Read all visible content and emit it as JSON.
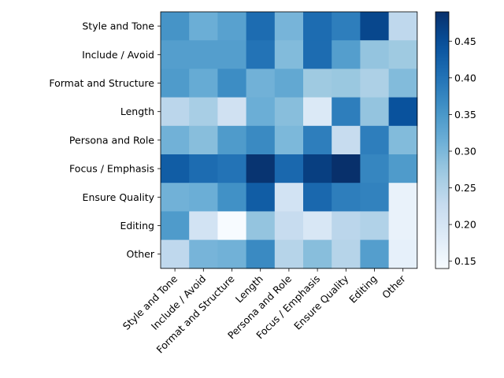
{
  "chart_data": {
    "type": "heatmap",
    "title": "",
    "xlabel": "",
    "ylabel": "",
    "rows": [
      "Style and Tone",
      "Include / Avoid",
      "Format and Structure",
      "Length",
      "Persona and Role",
      "Focus / Emphasis",
      "Ensure Quality",
      "Editing",
      "Other"
    ],
    "columns": [
      "Style and Tone",
      "Include / Avoid",
      "Format and Structure",
      "Length",
      "Persona and Role",
      "Focus / Emphasis",
      "Ensure Quality",
      "Editing",
      "Other"
    ],
    "values": [
      [
        0.355,
        0.315,
        0.335,
        0.41,
        0.305,
        0.41,
        0.385,
        0.46,
        0.235
      ],
      [
        0.34,
        0.34,
        0.34,
        0.4,
        0.295,
        0.41,
        0.34,
        0.28,
        0.27
      ],
      [
        0.345,
        0.32,
        0.365,
        0.31,
        0.325,
        0.27,
        0.275,
        0.255,
        0.295
      ],
      [
        0.24,
        0.26,
        0.21,
        0.315,
        0.29,
        0.19,
        0.385,
        0.28,
        0.445
      ],
      [
        0.31,
        0.29,
        0.345,
        0.37,
        0.3,
        0.385,
        0.225,
        0.385,
        0.295
      ],
      [
        0.43,
        0.41,
        0.4,
        0.485,
        0.415,
        0.47,
        0.49,
        0.375,
        0.345
      ],
      [
        0.31,
        0.315,
        0.36,
        0.43,
        0.205,
        0.415,
        0.385,
        0.38,
        0.165
      ],
      [
        0.345,
        0.205,
        0.14,
        0.28,
        0.225,
        0.195,
        0.24,
        0.25,
        0.165
      ],
      [
        0.235,
        0.305,
        0.31,
        0.37,
        0.245,
        0.29,
        0.245,
        0.34,
        0.17
      ]
    ],
    "colorbar": {
      "min": 0.14,
      "max": 0.49,
      "ticks": [
        "0.15",
        "0.20",
        "0.25",
        "0.30",
        "0.35",
        "0.40",
        "0.45"
      ],
      "tick_values": [
        0.15,
        0.2,
        0.25,
        0.3,
        0.35,
        0.4,
        0.45
      ]
    },
    "colormap": "Blues",
    "grid": false
  }
}
